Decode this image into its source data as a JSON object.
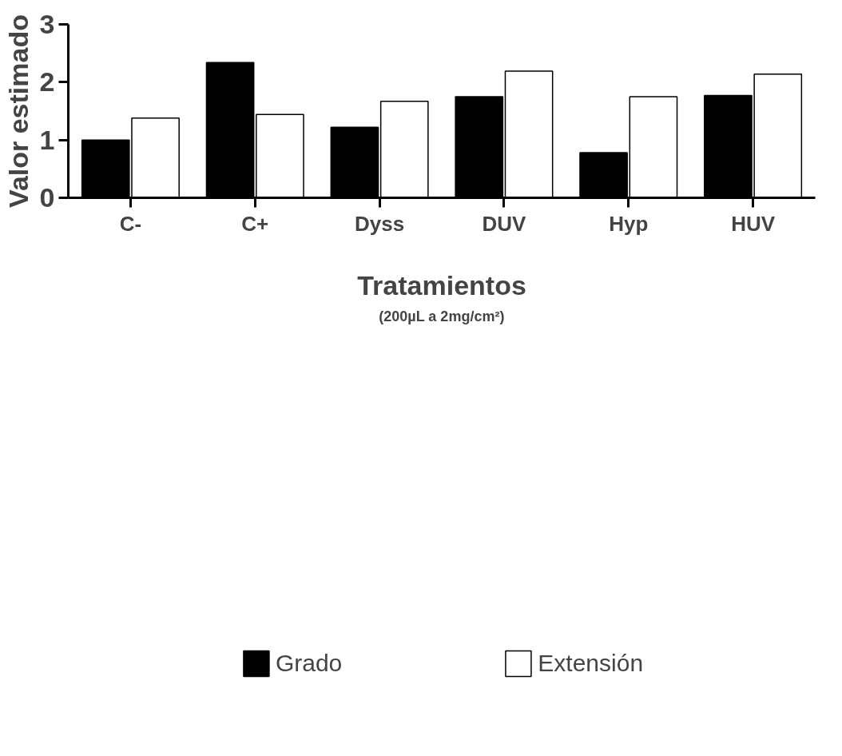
{
  "chart_data": {
    "type": "bar",
    "xlabel": "Tratamientos",
    "ylabel": "Valor estimado",
    "annotations": [
      "(200µL a 2mg/cm²)"
    ],
    "categories": [
      "C-",
      "C+",
      "Dyss",
      "DUV",
      "Hyp",
      "HUV"
    ],
    "series": [
      {
        "name": "Grado",
        "color": "#000000",
        "values": [
          1.0,
          2.34,
          1.22,
          1.75,
          0.78,
          1.77
        ]
      },
      {
        "name": "Extensión",
        "color": "#ffffff",
        "values": [
          1.38,
          1.44,
          1.67,
          2.19,
          1.75,
          2.14
        ]
      }
    ],
    "ylim": [
      0,
      3
    ],
    "yticks": [
      0,
      1,
      2,
      3
    ],
    "grid": false,
    "legend": "bottom"
  }
}
